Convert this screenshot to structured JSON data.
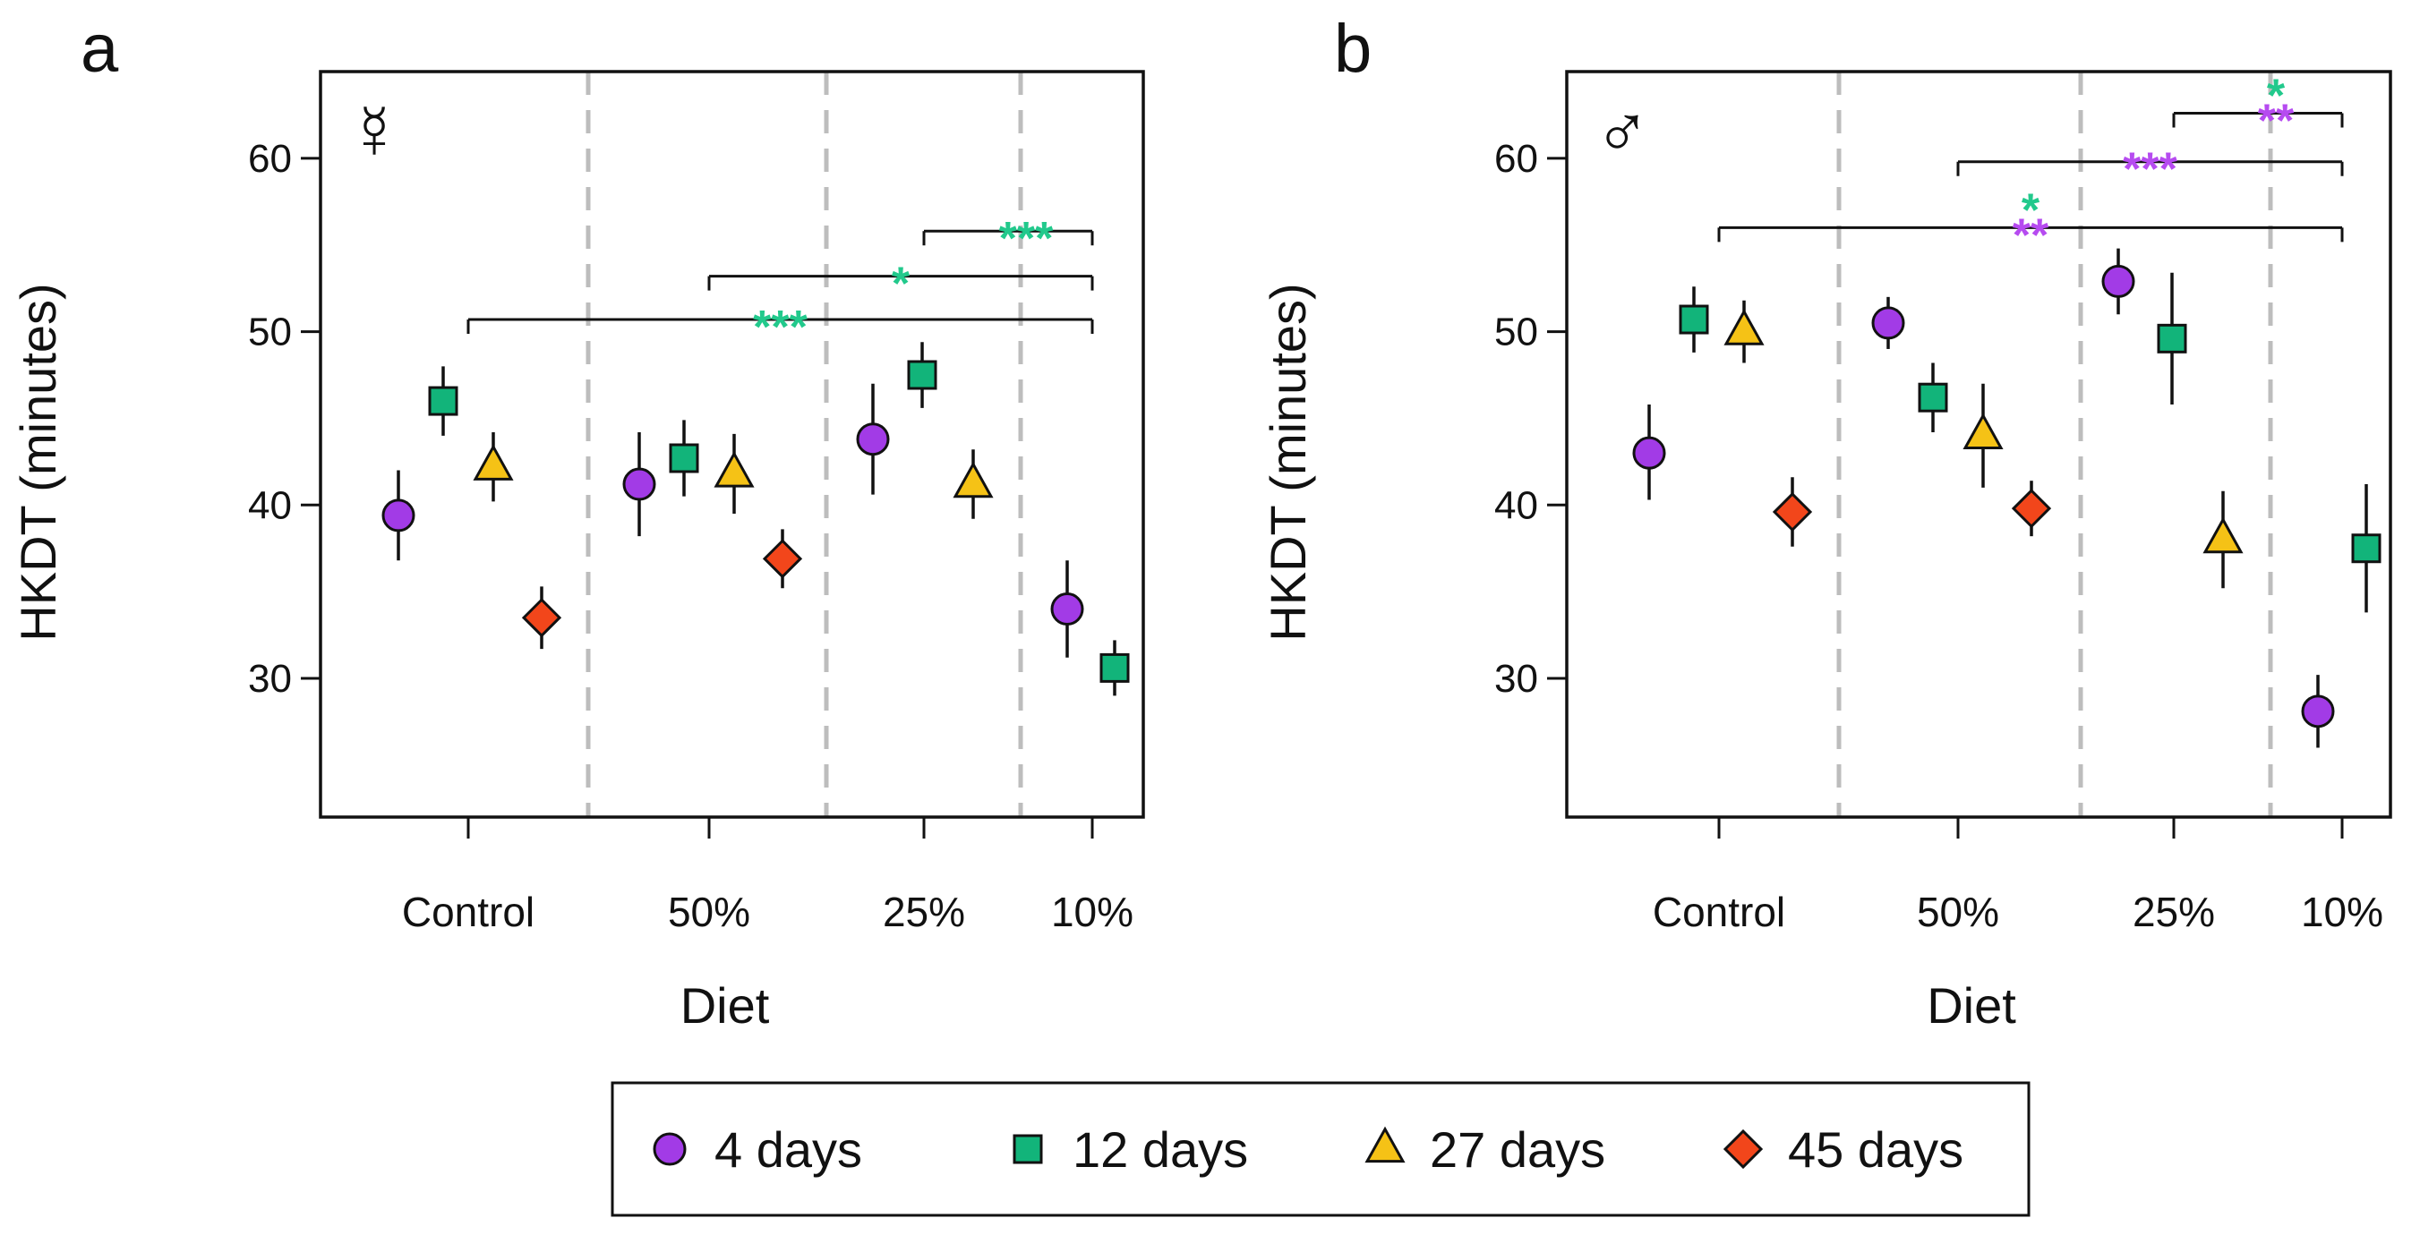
{
  "colors": {
    "4 days": "#a23be6",
    "12 days": "#12b47a",
    "27 days": "#f5c216",
    "45 days": "#f2461b",
    "sig_green": "#22c98c",
    "sig_purple": "#b64bf0",
    "divider": "#bdbdbd",
    "axis": "#111111"
  },
  "legend": {
    "items": [
      {
        "label": "4 days",
        "marker": "circle",
        "color": "#a23be6"
      },
      {
        "label": "12 days",
        "marker": "square",
        "color": "#12b47a"
      },
      {
        "label": "27 days",
        "marker": "triangle",
        "color": "#f5c216"
      },
      {
        "label": "45 days",
        "marker": "diamond",
        "color": "#f2461b"
      }
    ]
  },
  "chart_data": [
    {
      "type": "scatter",
      "panel_label": "a",
      "sex_symbol": "☿",
      "xlabel": "Diet",
      "ylabel": "HKDT (minutes)",
      "ylim": [
        22,
        65
      ],
      "yticks": [
        30,
        40,
        50,
        60
      ],
      "categories": [
        "Control",
        "50%",
        "25%",
        "10%"
      ],
      "series": [
        {
          "name": "4 days",
          "points": [
            {
              "x": "Control",
              "value": 39.4,
              "lo": 36.8,
              "hi": 42.0
            },
            {
              "x": "50%",
              "value": 41.2,
              "lo": 38.2,
              "hi": 44.2
            },
            {
              "x": "25%",
              "value": 43.8,
              "lo": 40.6,
              "hi": 47.0
            },
            {
              "x": "10%",
              "value": 34.0,
              "lo": 31.2,
              "hi": 36.8
            }
          ]
        },
        {
          "name": "12 days",
          "points": [
            {
              "x": "Control",
              "value": 46.0,
              "lo": 44.0,
              "hi": 48.0
            },
            {
              "x": "50%",
              "value": 42.7,
              "lo": 40.5,
              "hi": 44.9
            },
            {
              "x": "25%",
              "value": 47.5,
              "lo": 45.6,
              "hi": 49.4
            },
            {
              "x": "10%",
              "value": 30.6,
              "lo": 29.0,
              "hi": 32.2
            }
          ]
        },
        {
          "name": "27 days",
          "points": [
            {
              "x": "Control",
              "value": 42.2,
              "lo": 40.2,
              "hi": 44.2
            },
            {
              "x": "50%",
              "value": 41.8,
              "lo": 39.5,
              "hi": 44.1
            },
            {
              "x": "25%",
              "value": 41.2,
              "lo": 39.2,
              "hi": 43.2
            }
          ]
        },
        {
          "name": "45 days",
          "points": [
            {
              "x": "Control",
              "value": 33.5,
              "lo": 31.7,
              "hi": 35.3
            },
            {
              "x": "50%",
              "value": 36.9,
              "lo": 35.2,
              "hi": 38.6
            }
          ]
        }
      ],
      "annotations": [
        {
          "from": "Control",
          "to": "10%",
          "y": 50.7,
          "labels": [
            {
              "text": "***",
              "color": "#22c98c"
            }
          ]
        },
        {
          "from": "50%",
          "to": "10%",
          "y": 53.2,
          "labels": [
            {
              "text": "*",
              "color": "#22c98c"
            }
          ]
        },
        {
          "from": "25%",
          "to": "10%",
          "y": 55.8,
          "labels": [
            {
              "text": "***",
              "color": "#22c98c"
            }
          ]
        }
      ]
    },
    {
      "type": "scatter",
      "panel_label": "b",
      "sex_symbol": "♂",
      "xlabel": "Diet",
      "ylabel": "HKDT (minutes)",
      "ylim": [
        22,
        65
      ],
      "yticks": [
        30,
        40,
        50,
        60
      ],
      "categories": [
        "Control",
        "50%",
        "25%",
        "10%"
      ],
      "series": [
        {
          "name": "4 days",
          "points": [
            {
              "x": "Control",
              "value": 43.0,
              "lo": 40.3,
              "hi": 45.8
            },
            {
              "x": "50%",
              "value": 50.5,
              "lo": 49.0,
              "hi": 52.0
            },
            {
              "x": "25%",
              "value": 52.9,
              "lo": 51.0,
              "hi": 54.8
            },
            {
              "x": "10%",
              "value": 28.1,
              "lo": 26.0,
              "hi": 30.2
            }
          ]
        },
        {
          "name": "12 days",
          "points": [
            {
              "x": "Control",
              "value": 50.7,
              "lo": 48.8,
              "hi": 52.6
            },
            {
              "x": "50%",
              "value": 46.2,
              "lo": 44.2,
              "hi": 48.2
            },
            {
              "x": "25%",
              "value": 49.6,
              "lo": 45.8,
              "hi": 53.4
            },
            {
              "x": "10%",
              "value": 37.5,
              "lo": 33.8,
              "hi": 41.2
            }
          ]
        },
        {
          "name": "27 days",
          "points": [
            {
              "x": "Control",
              "value": 50.0,
              "lo": 48.2,
              "hi": 51.8
            },
            {
              "x": "50%",
              "value": 44.0,
              "lo": 41.0,
              "hi": 47.0
            },
            {
              "x": "25%",
              "value": 38.0,
              "lo": 35.2,
              "hi": 40.8
            }
          ]
        },
        {
          "name": "45 days",
          "points": [
            {
              "x": "Control",
              "value": 39.6,
              "lo": 37.6,
              "hi": 41.6
            },
            {
              "x": "50%",
              "value": 39.8,
              "lo": 38.2,
              "hi": 41.4
            }
          ]
        }
      ],
      "annotations": [
        {
          "from": "Control",
          "to": "10%",
          "y": 56.0,
          "labels": [
            {
              "text": "**",
              "color": "#b64bf0"
            },
            {
              "text": "*",
              "color": "#22c98c"
            }
          ]
        },
        {
          "from": "50%",
          "to": "10%",
          "y": 59.8,
          "labels": [
            {
              "text": "***",
              "color": "#b64bf0"
            }
          ]
        },
        {
          "from": "25%",
          "to": "10%",
          "y": 62.6,
          "labels": [
            {
              "text": "**",
              "color": "#b64bf0"
            },
            {
              "text": "*",
              "color": "#22c98c"
            }
          ]
        }
      ]
    }
  ]
}
